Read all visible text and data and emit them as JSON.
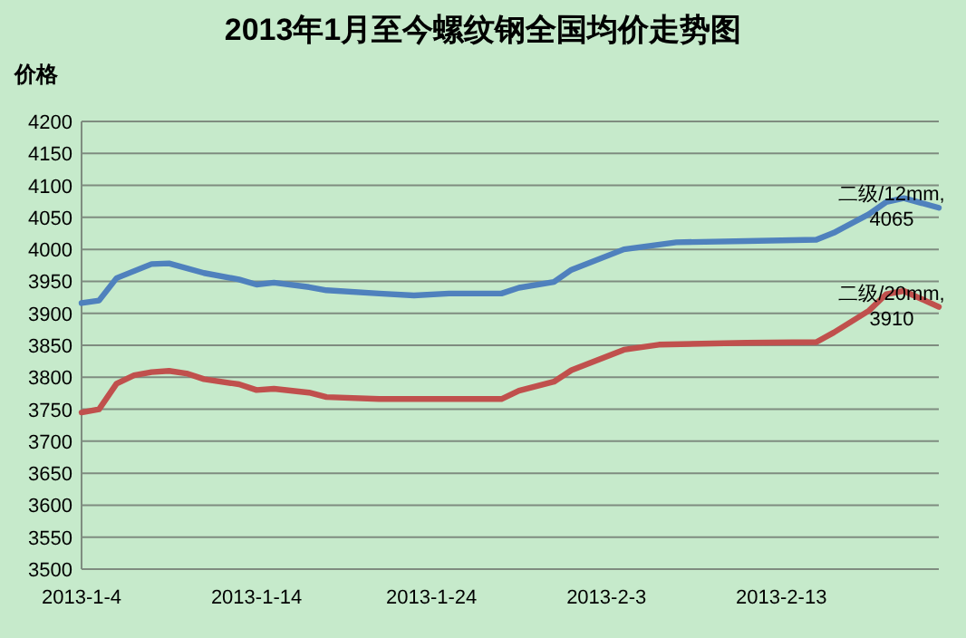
{
  "chart_data": {
    "type": "line",
    "title": "2013年1月至今螺纹钢全国均价走势图",
    "ylabel": "价格",
    "xlim": [
      "2013-01-04",
      "2013-02-22"
    ],
    "xticks": [
      {
        "value": "2013-01-04",
        "label": "2013-1-4"
      },
      {
        "value": "2013-01-14",
        "label": "2013-1-14"
      },
      {
        "value": "2013-01-24",
        "label": "2013-1-24"
      },
      {
        "value": "2013-02-03",
        "label": "2013-2-3"
      },
      {
        "value": "2013-02-13",
        "label": "2013-2-13"
      }
    ],
    "ylim": [
      3500,
      4200
    ],
    "yticks": [
      3500,
      3550,
      3600,
      3650,
      3700,
      3750,
      3800,
      3850,
      3900,
      3950,
      4000,
      4050,
      4100,
      4150,
      4200
    ],
    "grid": "y",
    "series": [
      {
        "color": "#4f81bd",
        "x": [
          "2013-01-04",
          "2013-01-05",
          "2013-01-06",
          "2013-01-08",
          "2013-01-09",
          "2013-01-11",
          "2013-01-13",
          "2013-01-14",
          "2013-01-15",
          "2013-01-17",
          "2013-01-18",
          "2013-01-21",
          "2013-01-23",
          "2013-01-25",
          "2013-01-28",
          "2013-01-29",
          "2013-01-31",
          "2013-02-01",
          "2013-02-04",
          "2013-02-07",
          "2013-02-11",
          "2013-02-15",
          "2013-02-16",
          "2013-02-18",
          "2013-02-19",
          "2013-02-20",
          "2013-02-22"
        ],
        "values": [
          3916,
          3920,
          3955,
          3977,
          3978,
          3963,
          3953,
          3945,
          3948,
          3941,
          3936,
          3931,
          3928,
          3931,
          3931,
          3940,
          3949,
          3968,
          4000,
          4011,
          4013,
          4015,
          4026,
          4055,
          4074,
          4080,
          4065
        ]
      },
      {
        "color": "#c0504d",
        "x": [
          "2013-01-04",
          "2013-01-05",
          "2013-01-06",
          "2013-01-07",
          "2013-01-08",
          "2013-01-09",
          "2013-01-10",
          "2013-01-11",
          "2013-01-13",
          "2013-01-14",
          "2013-01-15",
          "2013-01-17",
          "2013-01-18",
          "2013-01-21",
          "2013-01-28",
          "2013-01-29",
          "2013-01-31",
          "2013-02-01",
          "2013-02-04",
          "2013-02-06",
          "2013-02-11",
          "2013-02-15",
          "2013-02-16",
          "2013-02-18",
          "2013-02-19",
          "2013-02-20",
          "2013-02-22"
        ],
        "values": [
          3745,
          3750,
          3790,
          3803,
          3808,
          3810,
          3806,
          3797,
          3789,
          3780,
          3782,
          3776,
          3769,
          3766,
          3766,
          3779,
          3793,
          3811,
          3843,
          3851,
          3854,
          3855,
          3870,
          3904,
          3930,
          3935,
          3910
        ]
      }
    ],
    "annotations": [
      {
        "text": "二级/12mm,\n4065",
        "x": "2013-02-22",
        "y": 4065
      },
      {
        "text": "二级/20mm,\n3910",
        "x": "2013-02-22",
        "y": 3910
      }
    ]
  }
}
